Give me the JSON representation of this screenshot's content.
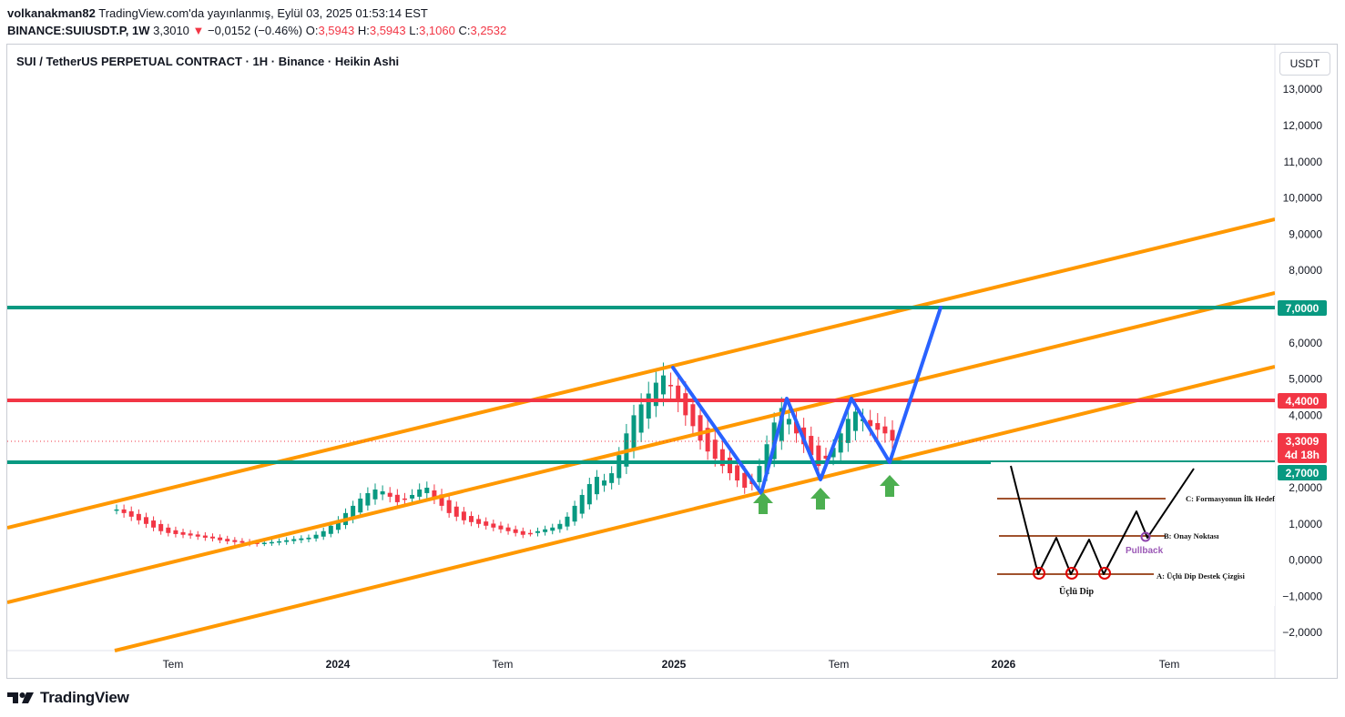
{
  "header": {
    "username": "volkanakman82",
    "published": "TradingView.com'da yayınlanmış, Eylül 03, 2025 01:53:14 EST",
    "symbol": "BINANCE:SUIUSDT.P, 1W",
    "last": "3,3010",
    "change": "−0,0152 (−0.46%)",
    "o_label": "O:",
    "o_value": "3,5943",
    "h_label": "H:",
    "h_value": "3,5943",
    "l_label": "L:",
    "l_value": "3,1060",
    "c_label": "C:",
    "c_value": "3,2532"
  },
  "chart": {
    "title": "SUI / TetherUS PERPETUAL CONTRACT · 1H · Binance · Heikin Ashi",
    "currency": "USDT",
    "y_ticks": [
      "13,0000",
      "12,0000",
      "11,0000",
      "10,0000",
      "9,0000",
      "8,0000",
      "7,0000",
      "6,0000",
      "5,0000",
      "4,0000",
      "3,0000",
      "2,0000",
      "1,0000",
      "0,0000",
      "−1,0000",
      "−2,0000"
    ],
    "x_ticks": [
      {
        "label": "Tem",
        "bold": false
      },
      {
        "label": "2024",
        "bold": true
      },
      {
        "label": "Tem",
        "bold": false
      },
      {
        "label": "2025",
        "bold": true
      },
      {
        "label": "Tem",
        "bold": false
      },
      {
        "label": "2026",
        "bold": true
      },
      {
        "label": "Tem",
        "bold": false
      }
    ],
    "price_tags": {
      "resistance_upper": "7,0000",
      "resistance": "4,4000",
      "current_price": "3,3009",
      "countdown": "4d 18h",
      "support": "2,7000"
    },
    "colors": {
      "up": "#089981",
      "down": "#f23645",
      "channel": "#ff9800",
      "level_green": "#089981",
      "level_red": "#f23645",
      "pattern": "#2962ff",
      "arrow": "#4caf50"
    },
    "inset": {
      "label_c": "C: Formasyonun İlk Hedefi",
      "label_b": "B: Onay Noktası",
      "label_pullback": "Pullback",
      "label_a": "A: Üçlü Dip Destek Çizgisi",
      "label_name": "Üçlü Dip"
    }
  },
  "chart_data": {
    "type": "candlestick",
    "title": "SUI / TetherUS PERPETUAL CONTRACT · 1H · Binance · Heikin Ashi",
    "y_axis": {
      "unit": "USDT",
      "range": [
        -2.5,
        13.6
      ]
    },
    "x_axis": {
      "ticks": [
        "Tem",
        "2024",
        "Tem",
        "2025",
        "Tem",
        "2026",
        "Tem"
      ]
    },
    "horizontal_levels": [
      {
        "price": 7.0,
        "color": "#089981"
      },
      {
        "price": 4.4,
        "color": "#f23645"
      },
      {
        "price": 2.7,
        "color": "#089981"
      }
    ],
    "current_price": 3.3009,
    "approx_closes": [
      1.4,
      1.3,
      1.2,
      1.1,
      1.0,
      0.9,
      0.8,
      0.75,
      0.72,
      0.7,
      0.68,
      0.65,
      0.62,
      0.6,
      0.55,
      0.52,
      0.5,
      0.48,
      0.46,
      0.45,
      0.48,
      0.5,
      0.52,
      0.55,
      0.58,
      0.6,
      0.62,
      0.7,
      0.8,
      0.95,
      1.1,
      1.3,
      1.5,
      1.7,
      1.85,
      1.95,
      1.9,
      1.75,
      1.6,
      1.7,
      1.8,
      1.95,
      2.0,
      1.7,
      1.5,
      1.3,
      1.2,
      1.1,
      1.05,
      1.0,
      0.95,
      0.9,
      0.85,
      0.8,
      0.75,
      0.7,
      0.75,
      0.8,
      0.85,
      0.9,
      1.0,
      1.2,
      1.5,
      1.8,
      2.1,
      2.3,
      2.2,
      2.4,
      2.9,
      3.5,
      4.0,
      4.3,
      4.6,
      4.9,
      5.1,
      4.8,
      4.4,
      4.0,
      3.7,
      3.3,
      3.0,
      2.8,
      2.6,
      2.4,
      2.2,
      2.0,
      2.1,
      2.6,
      3.2,
      3.8,
      4.2,
      3.9,
      3.5,
      3.2,
      2.9,
      2.6,
      2.8,
      3.1,
      3.5,
      3.9,
      4.1,
      3.9,
      3.7,
      3.6,
      3.5,
      3.3
    ]
  }
}
